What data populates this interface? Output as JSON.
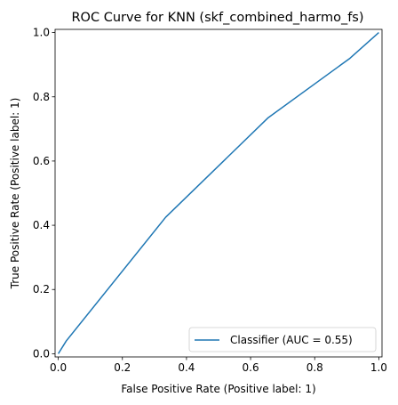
{
  "chart_data": {
    "type": "line",
    "title": "ROC Curve for KNN (skf_combined_harmo_fs)",
    "xlabel": "False Positive Rate (Positive label: 1)",
    "ylabel": "True Positive Rate (Positive label: 1)",
    "xlim": [
      -0.01,
      1.01
    ],
    "ylim": [
      -0.01,
      1.01
    ],
    "xticks": [
      0.0,
      0.2,
      0.4,
      0.6,
      0.8,
      1.0
    ],
    "yticks": [
      0.0,
      0.2,
      0.4,
      0.6,
      0.8,
      1.0
    ],
    "xtick_labels": [
      "0.0",
      "0.2",
      "0.4",
      "0.6",
      "0.8",
      "1.0"
    ],
    "ytick_labels": [
      "0.0",
      "0.2",
      "0.4",
      "0.6",
      "0.8",
      "1.0"
    ],
    "grid": false,
    "legend_position": "lower-right",
    "series": [
      {
        "name": "Classifier (AUC = 0.55)",
        "color": "#1f77b4",
        "x": [
          0.0,
          0.025,
          0.335,
          0.655,
          0.91,
          1.0
        ],
        "y": [
          0.0,
          0.04,
          0.425,
          0.735,
          0.92,
          1.0
        ]
      }
    ]
  }
}
